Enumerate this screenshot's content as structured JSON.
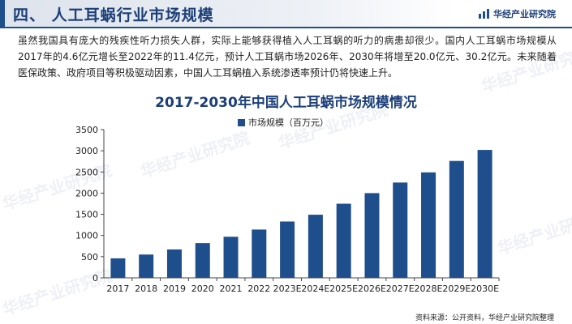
{
  "header": {
    "section_title": "四、 人工耳蜗行业市场规模",
    "brand": "华经产业研究院"
  },
  "intro_text": "虽然我国具有庞大的残疾性听力损失人群，实际上能够获得植入人工耳蜗的听力的病患却很少。国内人工耳蜗市场规模从2017年的4.6亿元增长至2022年的11.4亿元，预计人工耳蜗市场2026年、2030年将增至20.0亿元、30.2亿元。未来随着医保政策、政府项目等积极驱动因素，中国人工耳蜗植入系统渗透率预计仍将快速上升。",
  "watermark": "华经产业研究院",
  "colors": {
    "bar": "#1f4e8c",
    "title": "#1c3f78"
  },
  "chart_data": {
    "type": "bar",
    "title": "2017-2030年中国人工耳蜗市场规模情况",
    "xlabel": "",
    "ylabel": "",
    "categories": [
      "2017",
      "2018",
      "2019",
      "2020",
      "2021",
      "2022",
      "2023E",
      "2024E",
      "2025E",
      "2026E",
      "2027E",
      "2028E",
      "2029E",
      "2030E"
    ],
    "series": [
      {
        "name": "市场规模（百万元）",
        "values": [
          460,
          550,
          670,
          820,
          970,
          1140,
          1330,
          1490,
          1750,
          2000,
          2250,
          2490,
          2760,
          3020
        ]
      }
    ],
    "ylim": [
      0,
      3500
    ],
    "yticks": [
      0,
      500,
      1000,
      1500,
      2000,
      2500,
      3000,
      3500
    ],
    "grid": false,
    "legend_position": "top-center"
  },
  "footer": {
    "source": "资料来源：公开资料，华经产业研究院整理"
  }
}
